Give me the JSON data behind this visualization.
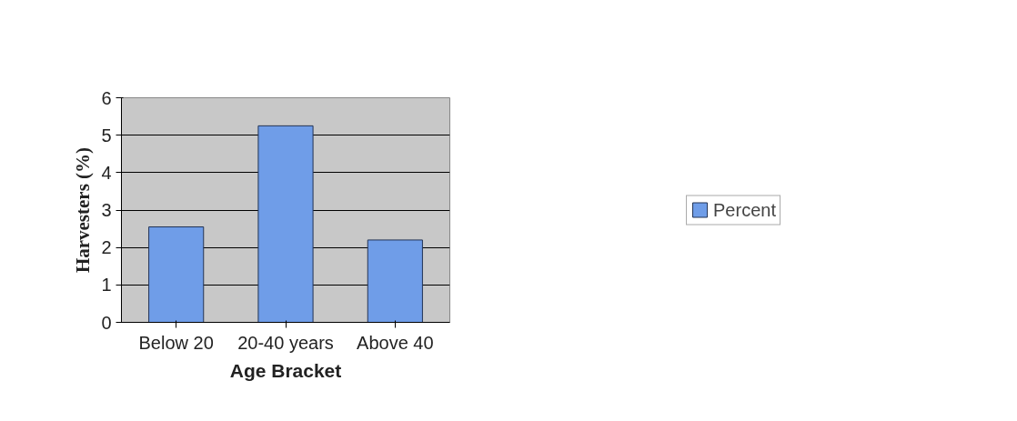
{
  "chart_data": {
    "type": "bar",
    "xlabel": "Age Bracket",
    "ylabel": "Harvesters (%)",
    "categories": [
      "Below 20",
      "20-40 years",
      "Above 40"
    ],
    "series": [
      {
        "name": "Percent",
        "color": "#6f9de8",
        "values": [
          2.55,
          5.25,
          2.2
        ]
      }
    ],
    "ylim": [
      0,
      6
    ],
    "yticks": [
      0,
      1,
      2,
      3,
      4,
      5,
      6
    ],
    "grid": "y",
    "legend": "right"
  }
}
